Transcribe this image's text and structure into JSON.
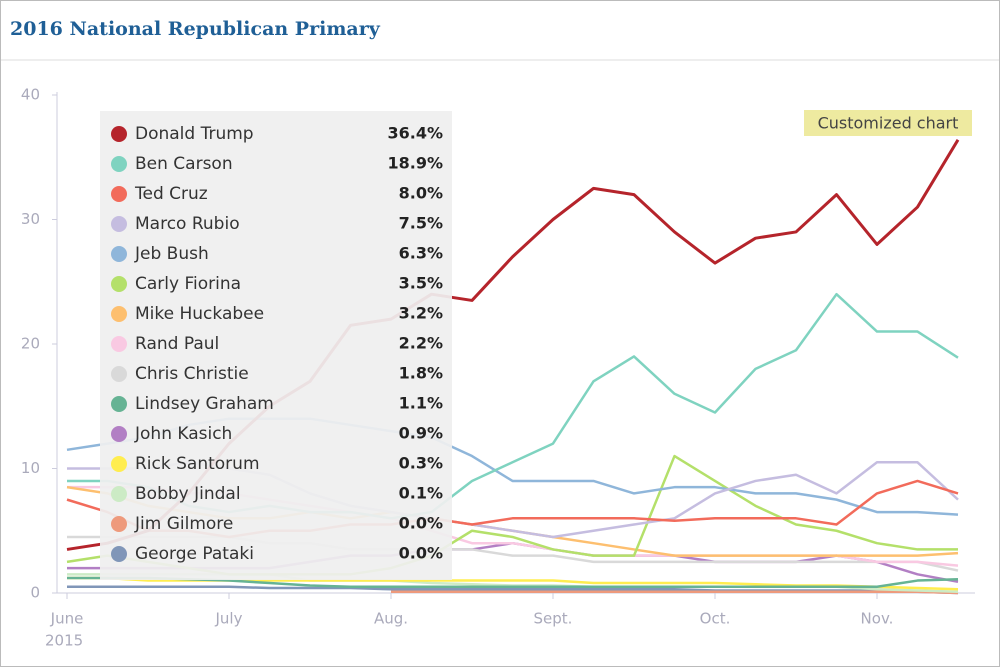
{
  "chart_data": {
    "type": "line",
    "title": "2016 National Republican Primary",
    "annotation": "Customized chart",
    "categories": [
      "June",
      null,
      null,
      null,
      "July",
      null,
      null,
      null,
      "Aug.",
      null,
      null,
      null,
      "Sept.",
      null,
      null,
      null,
      "Oct.",
      null,
      null,
      null,
      "Nov.",
      null,
      null
    ],
    "year_label": "2015",
    "ylim": [
      0,
      40
    ],
    "yticks": [
      0,
      10,
      20,
      30,
      40
    ],
    "grid": false,
    "legend": "top-left",
    "series": [
      {
        "name": "Donald Trump",
        "color": "#b5242b",
        "last_label": "36.4%",
        "values": [
          3.5,
          4,
          5,
          8,
          12,
          15,
          17,
          21.5,
          22,
          24,
          23.5,
          27,
          30,
          32.5,
          32,
          29,
          26.5,
          28.5,
          29,
          32,
          28,
          31,
          36.4
        ]
      },
      {
        "name": "Ben Carson",
        "color": "#7fd3c0",
        "last_label": "18.9%",
        "values": [
          9,
          9,
          8.5,
          7,
          6.5,
          7,
          6.5,
          6.5,
          6,
          6.5,
          9,
          10.5,
          12,
          17,
          19,
          16,
          14.5,
          18,
          19.5,
          24,
          21,
          21,
          18.9
        ]
      },
      {
        "name": "Ted Cruz",
        "color": "#f26b5b",
        "last_label": "8.0%",
        "values": [
          7.5,
          6.5,
          5,
          5,
          4.5,
          5,
          5,
          5.5,
          5.5,
          6,
          5.5,
          6,
          6,
          6,
          6,
          5.8,
          6,
          6,
          6,
          5.5,
          8,
          9,
          8.0
        ]
      },
      {
        "name": "Marco Rubio",
        "color": "#c5bde0",
        "last_label": "7.5%",
        "values": [
          10,
          10,
          10,
          10.5,
          10,
          9.5,
          8,
          7,
          6.5,
          6,
          5.5,
          5,
          4.5,
          5,
          5.5,
          6,
          8,
          9,
          9.5,
          8,
          10.5,
          10.5,
          7.5
        ]
      },
      {
        "name": "Jeb Bush",
        "color": "#8fb6da",
        "last_label": "6.3%",
        "values": [
          11.5,
          12,
          12.5,
          13.5,
          14,
          14,
          14,
          13.5,
          13,
          12.5,
          11,
          9,
          9,
          9,
          8,
          8.5,
          8.5,
          8,
          8,
          7.5,
          6.5,
          6.5,
          6.3
        ]
      },
      {
        "name": "Carly Fiorina",
        "color": "#b4e06a",
        "last_label": "3.5%",
        "values": [
          2.5,
          3,
          2.5,
          2,
          1.5,
          1.5,
          1.5,
          1.5,
          2,
          3,
          5,
          4.5,
          3.5,
          3,
          3,
          11,
          9,
          7,
          5.5,
          5,
          4,
          3.5,
          3.5
        ]
      },
      {
        "name": "Mike Huckabee",
        "color": "#fdbf6f",
        "last_label": "3.2%",
        "values": [
          8.5,
          8,
          7,
          6.5,
          6,
          6,
          6.5,
          6,
          6.5,
          6,
          5.5,
          5,
          4.5,
          4,
          3.5,
          3,
          3,
          3,
          3,
          3,
          3,
          3,
          3.2
        ]
      },
      {
        "name": "Rand Paul",
        "color": "#f9c9e2",
        "last_label": "2.2%",
        "values": [
          8.5,
          8.5,
          8.5,
          8,
          8,
          7.5,
          7,
          6.5,
          6,
          5,
          4,
          4,
          3.5,
          3,
          3,
          3,
          3,
          3,
          3,
          3,
          2.5,
          2.5,
          2.2
        ]
      },
      {
        "name": "Chris Christie",
        "color": "#d9d9d9",
        "last_label": "1.8%",
        "values": [
          4.5,
          4.5,
          4.5,
          4.5,
          4.5,
          4,
          4,
          3.5,
          3.5,
          3.5,
          3.5,
          3,
          3,
          2.5,
          2.5,
          2.5,
          2.5,
          2.5,
          2.5,
          2.5,
          2.5,
          2.5,
          1.8
        ]
      },
      {
        "name": "Lindsey Graham",
        "color": "#66b394",
        "last_label": "1.1%",
        "values": [
          1.2,
          1.2,
          1.2,
          1.1,
          1,
          0.8,
          0.6,
          0.5,
          0.5,
          0.5,
          0.5,
          0.5,
          0.5,
          0.5,
          0.5,
          0.5,
          0.5,
          0.5,
          0.5,
          0.5,
          0.5,
          1,
          1.1
        ]
      },
      {
        "name": "John Kasich",
        "color": "#b27fc4",
        "last_label": "0.9%",
        "values": [
          2,
          2,
          2,
          2,
          2,
          2,
          2.5,
          3,
          3,
          3.5,
          3.5,
          4,
          3.5,
          3,
          3,
          3,
          2.5,
          2.5,
          2.5,
          3,
          2.5,
          1.5,
          0.9
        ]
      },
      {
        "name": "Rick Santorum",
        "color": "#ffed4f",
        "last_label": "0.3%",
        "values": [
          1.2,
          1.2,
          1,
          1,
          1,
          1,
          1,
          1,
          1,
          1,
          1,
          1,
          1,
          0.8,
          0.8,
          0.8,
          0.8,
          0.7,
          0.6,
          0.6,
          0.5,
          0.4,
          0.3
        ]
      },
      {
        "name": "Bobby Jindal",
        "color": "#ccebc5",
        "last_label": "0.1%",
        "values": [
          1.5,
          1.5,
          1.5,
          1.5,
          1.5,
          1.5,
          1,
          1,
          1,
          0.8,
          0.7,
          0.6,
          0.6,
          0.5,
          0.5,
          0.5,
          0.5,
          0.5,
          0.5,
          0.5,
          0.3,
          0.2,
          0.1
        ]
      },
      {
        "name": "Jim Gilmore",
        "color": "#ee9a7c",
        "last_label": "0.0%",
        "values": [
          null,
          null,
          null,
          null,
          null,
          null,
          null,
          null,
          0.1,
          0.1,
          0.1,
          0.1,
          0.1,
          0.1,
          0.1,
          0.1,
          0.1,
          0.1,
          0.1,
          0.1,
          0.1,
          0.1,
          0.0
        ]
      },
      {
        "name": "George Pataki",
        "color": "#8096b8",
        "last_label": "0.0%",
        "values": [
          0.5,
          0.5,
          0.5,
          0.5,
          0.5,
          0.4,
          0.4,
          0.4,
          0.3,
          0.3,
          0.3,
          0.3,
          0.3,
          0.3,
          0.3,
          0.3,
          0.2,
          0.2,
          0.2,
          0.2,
          0.2,
          0.1,
          0.0
        ]
      }
    ]
  }
}
